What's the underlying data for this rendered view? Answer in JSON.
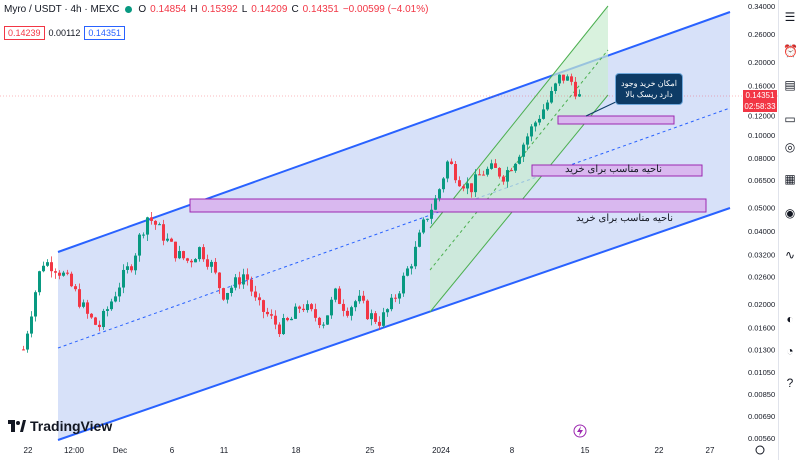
{
  "header": {
    "symbol": "Myro / USDT · 4h · MEXC",
    "o_label": "O",
    "o_value": "0.14854",
    "h_label": "H",
    "h_value": "0.15392",
    "l_label": "L",
    "l_value": "0.14209",
    "c_label": "C",
    "c_value": "0.14351",
    "change": "−0.00599 (−4.01%)",
    "bid": "0.14239",
    "spread": "0.00112",
    "ask": "0.14351"
  },
  "price_tag": {
    "price": "0.14351",
    "countdown": "02:58:33"
  },
  "logo": "TradingView",
  "annotations": {
    "note": "امکان خرید وجود دارد ریسک بالا",
    "zone_label_1": "ناحیه مناسب برای خرید",
    "zone_label_2": "ناحیه مناسب برای خرید"
  },
  "colors": {
    "up": "#089981",
    "down": "#f23645",
    "channel": "#2962ff",
    "green_channel": "#4caf50",
    "zone": "#9c27b0"
  },
  "chart_data": {
    "type": "candlestick",
    "title": "",
    "y_scale": "log",
    "y_ticks": [
      "0.34000",
      "0.26000",
      "0.20000",
      "0.16000",
      "0.12000",
      "0.10000",
      "0.08000",
      "0.06500",
      "0.05000",
      "0.04000",
      "0.03200",
      "0.02600",
      "0.02000",
      "0.01600",
      "0.01300",
      "0.01050",
      "0.00850",
      "0.00690",
      "0.00560"
    ],
    "x_ticks": [
      "22",
      "12:00",
      "Dec",
      "6",
      "11",
      "18",
      "25",
      "2024",
      "8",
      "15",
      "22",
      "27"
    ],
    "last_price": 0.14351,
    "price_path": [
      [
        0,
        0.013
      ],
      [
        3,
        0.022
      ],
      [
        5,
        0.03
      ],
      [
        8,
        0.029
      ],
      [
        11,
        0.026
      ],
      [
        14,
        0.022
      ],
      [
        17,
        0.018
      ],
      [
        20,
        0.016
      ],
      [
        23,
        0.02
      ],
      [
        26,
        0.025
      ],
      [
        29,
        0.03
      ],
      [
        31,
        0.038
      ],
      [
        33,
        0.046
      ],
      [
        35,
        0.043
      ],
      [
        38,
        0.037
      ],
      [
        41,
        0.032
      ],
      [
        44,
        0.03
      ],
      [
        47,
        0.034
      ],
      [
        50,
        0.029
      ],
      [
        53,
        0.022
      ],
      [
        56,
        0.024
      ],
      [
        59,
        0.027
      ],
      [
        62,
        0.02
      ],
      [
        65,
        0.018
      ],
      [
        68,
        0.016
      ],
      [
        71,
        0.017
      ],
      [
        74,
        0.02
      ],
      [
        77,
        0.018
      ],
      [
        80,
        0.017
      ],
      [
        83,
        0.022
      ],
      [
        86,
        0.019
      ],
      [
        89,
        0.021
      ],
      [
        92,
        0.018
      ],
      [
        95,
        0.017
      ],
      [
        98,
        0.02
      ],
      [
        101,
        0.025
      ],
      [
        104,
        0.032
      ],
      [
        107,
        0.045
      ],
      [
        110,
        0.055
      ],
      [
        113,
        0.078
      ],
      [
        116,
        0.066
      ],
      [
        119,
        0.06
      ],
      [
        122,
        0.07
      ],
      [
        125,
        0.072
      ],
      [
        128,
        0.068
      ],
      [
        131,
        0.08
      ],
      [
        134,
        0.098
      ],
      [
        137,
        0.118
      ],
      [
        140,
        0.14
      ],
      [
        143,
        0.175
      ],
      [
        146,
        0.165
      ],
      [
        148,
        0.143
      ]
    ],
    "zones": [
      {
        "label": "ناحیه مناسب برای خرید",
        "from": 0.047,
        "to": 0.052
      },
      {
        "label": "ناحیه مناسب برای خرید",
        "from": 0.071,
        "to": 0.077
      },
      {
        "label": "",
        "from": 0.112,
        "to": 0.118
      }
    ],
    "grid": false,
    "legend": "none"
  }
}
